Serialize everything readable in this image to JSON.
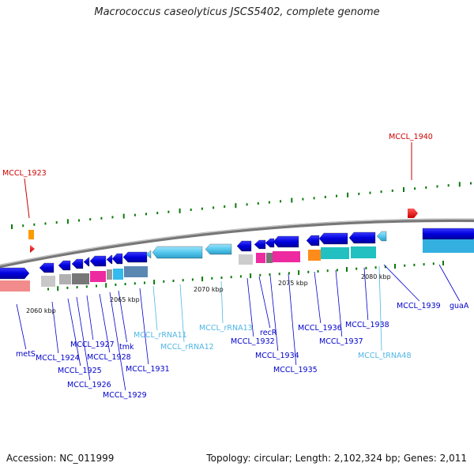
{
  "title": "Macrococcus caseolyticus JSCS5402, complete genome",
  "footer": {
    "accession": "Accession: NC_011999",
    "topology": "Topology: circular; Length: 2,102,324 bp; Genes: 2,011"
  },
  "scale_labels": [
    "2060 kbp",
    "2065 kbp",
    "2070 kbp",
    "2075 kbp",
    "2080 kbp"
  ],
  "top_labels": [
    "MCCL_1923",
    "MCCL_1940"
  ],
  "gene_labels": [
    "metS",
    "MCCL_1924",
    "MCCL_1925",
    "MCCL_1926",
    "MCCL_1927",
    "MCCL_1928",
    "MCCL_1929",
    "tmk",
    "MCCL_1931",
    "MCCL_rRNA11",
    "MCCL_rRNA12",
    "MCCL_rRNA13",
    "MCCL_1932",
    "recR",
    "MCCL_1934",
    "MCCL_1935",
    "MCCL_1936",
    "MCCL_1937",
    "MCCL_1938",
    "MCCL_tRNA48",
    "MCCL_1939",
    "guaA"
  ],
  "colors": {
    "cds": "#0000dd",
    "rna": "#55c8ee",
    "highlight": "#cc0000",
    "gc_dots": "#007700",
    "backbone": "#888888"
  }
}
